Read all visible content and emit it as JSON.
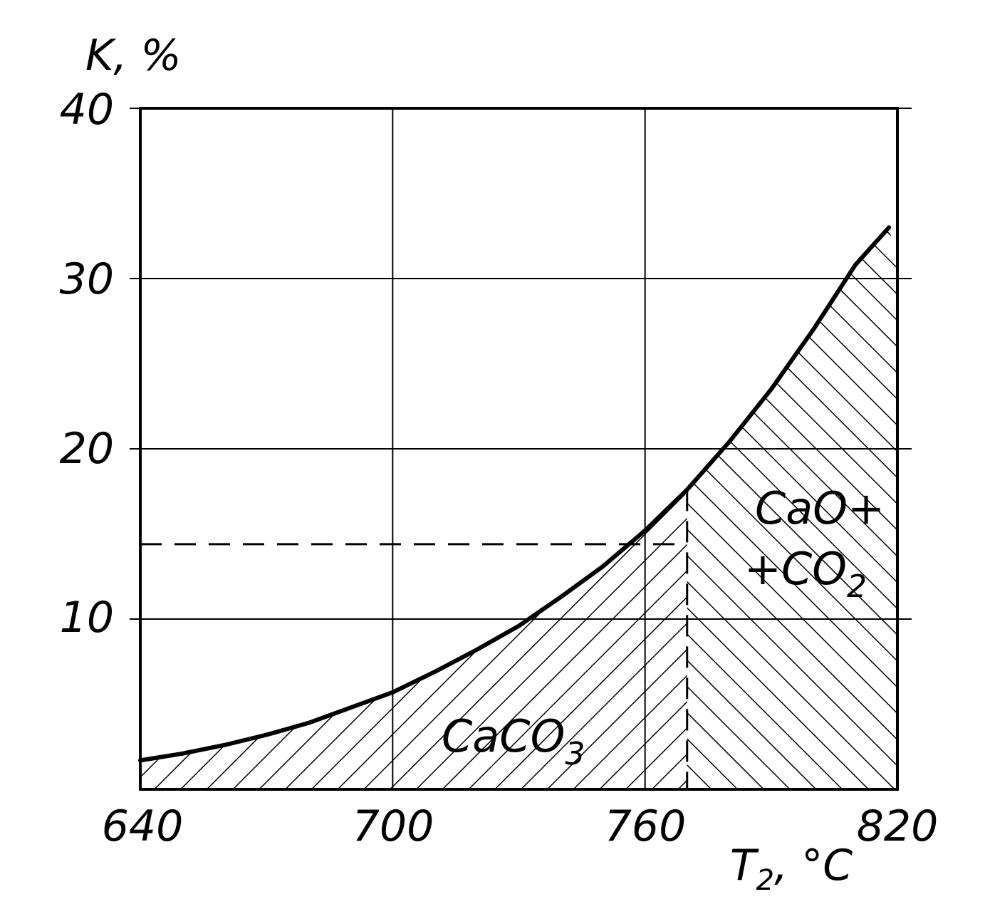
{
  "chart_data": {
    "type": "area",
    "title": "",
    "ylabel": "K, %",
    "xlabel_main": "T",
    "xlabel_sub": "2",
    "xlabel_unit": ", °C",
    "xlim": [
      640,
      820
    ],
    "ylim": [
      0,
      40
    ],
    "grid": true,
    "x_ticks": [
      "640",
      "700",
      "760",
      "820"
    ],
    "y_ticks": [
      "10",
      "20",
      "30",
      "40"
    ],
    "x_tick_values": [
      640,
      700,
      760,
      820
    ],
    "y_tick_values": [
      10,
      20,
      30,
      40
    ],
    "series": [
      {
        "x": [
          640,
          650,
          660,
          670,
          680,
          690,
          700,
          710,
          720,
          730,
          740,
          750,
          760,
          770,
          780,
          790,
          800,
          810,
          818
        ],
        "y": [
          1.7,
          2.1,
          2.6,
          3.2,
          3.9,
          4.8,
          5.7,
          6.9,
          8.2,
          9.6,
          11.3,
          13.1,
          15.2,
          17.6,
          20.4,
          23.5,
          27.0,
          30.8,
          33.0
        ]
      }
    ],
    "boundary_x": 770,
    "reference_y": 14.4,
    "regions": [
      {
        "label_main": "CaCO",
        "label_sub": "3"
      },
      {
        "label_line1": "CaO+",
        "label_line2_main": "+CO",
        "label_line2_sub": "2"
      }
    ]
  }
}
